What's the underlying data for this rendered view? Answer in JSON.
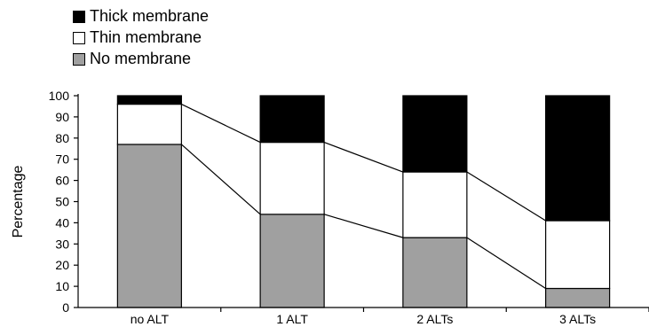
{
  "chart_data": {
    "type": "bar",
    "stacked": true,
    "categories": [
      "no ALT",
      "1 ALT",
      "2 ALTs",
      "3 ALTs"
    ],
    "series": [
      {
        "name": "No membrane",
        "values": [
          77,
          44,
          33,
          9
        ],
        "color": "#a0a0a0"
      },
      {
        "name": "Thin membrane",
        "values": [
          19,
          34,
          31,
          32
        ],
        "color": "#ffffff"
      },
      {
        "name": "Thick membrane",
        "values": [
          4,
          22,
          36,
          59
        ],
        "color": "#000000"
      }
    ],
    "legend_order": [
      "Thick membrane",
      "Thin membrane",
      "No membrane"
    ],
    "legend_placement": "top-left",
    "ylabel": "Percentage",
    "xlabel": "",
    "ylim": [
      0,
      100
    ],
    "yticks": [
      0,
      10,
      20,
      30,
      40,
      50,
      60,
      70,
      80,
      90,
      100
    ],
    "connector_lines": true,
    "grid": false
  }
}
